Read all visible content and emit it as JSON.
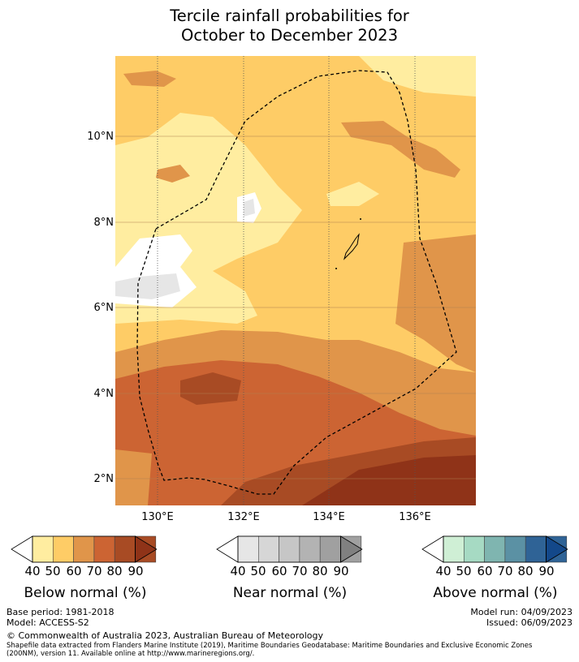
{
  "title": {
    "line1": "Tercile rainfall probabilities for",
    "line2": "October to December 2023"
  },
  "axes": {
    "y_ticks": [
      "10°N",
      "8°N",
      "6°N",
      "4°N",
      "2°N"
    ],
    "x_ticks": [
      "130°E",
      "132°E",
      "134°E",
      "136°E"
    ]
  },
  "colorbars": [
    {
      "title": "Below normal (%)",
      "ticks": [
        "40",
        "50",
        "60",
        "70",
        "80",
        "90"
      ],
      "colors": [
        "#ffeda0",
        "#fecc66",
        "#e0954a",
        "#cc6433",
        "#a84b24",
        "#8f3318"
      ],
      "under": "#ffffff",
      "over": "#8f3318"
    },
    {
      "title": "Near normal (%)",
      "ticks": [
        "40",
        "50",
        "60",
        "70",
        "80",
        "90"
      ],
      "colors": [
        "#e6e6e6",
        "#d6d6d6",
        "#c6c6c6",
        "#b3b3b3",
        "#a0a0a0",
        "#808080"
      ],
      "under": "#ffffff",
      "over": "#808080"
    },
    {
      "title": "Above normal (%)",
      "ticks": [
        "40",
        "50",
        "60",
        "70",
        "80",
        "90"
      ],
      "colors": [
        "#cfefd5",
        "#a6dac3",
        "#7fb5b0",
        "#5b91a4",
        "#2f6396",
        "#13488a"
      ],
      "under": "#ffffff",
      "over": "#13488a"
    }
  ],
  "footer": {
    "base_period": "Base period: 1981-2018",
    "model": "Model: ACCESS-S2",
    "model_run": "Model run: 04/09/2023",
    "issued": "Issued: 06/09/2023",
    "copyright": "© Commonwealth of Australia 2023, Australian Bureau of Meteorology",
    "shapefile_line1": "Shapefile data extracted from Flanders Marine Institute (2019), Maritime Boundaries Geodatabase: Maritime Boundaries and Exclusive Economic Zones",
    "shapefile_line2": "(200NM), version 11. Available online at http://www.marineregions.org/."
  }
}
